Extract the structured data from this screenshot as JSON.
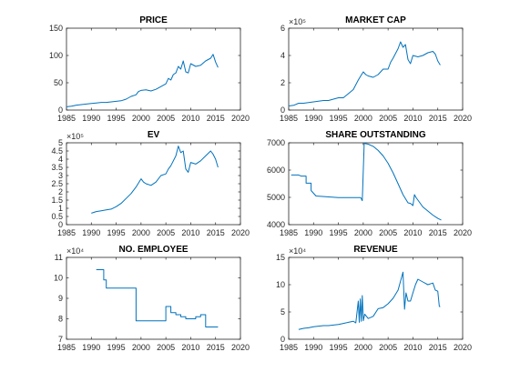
{
  "figure": {
    "series_color": "#0072BD",
    "axis_color": "#262626"
  },
  "chart_data": [
    {
      "type": "line",
      "title": "PRICE",
      "xlim": [
        1985,
        2020
      ],
      "ylim": [
        0,
        150
      ],
      "xticks": [
        1985,
        1990,
        1995,
        2000,
        2005,
        2010,
        2015,
        2020
      ],
      "xtick_labels": [
        "1985",
        "1990",
        "1995",
        "2000",
        "2005",
        "2010",
        "2015",
        "2020"
      ],
      "yticks": [
        0,
        50,
        100,
        150
      ],
      "ytick_labels": [
        "0",
        "50",
        "100",
        "150"
      ],
      "exponent_label": null,
      "grid": false,
      "x": [
        1985,
        1986,
        1987,
        1988,
        1989,
        1990,
        1991,
        1992,
        1993,
        1994,
        1995,
        1996,
        1997,
        1998,
        1999,
        1999.5,
        2000,
        2001,
        2002,
        2003,
        2004,
        2005,
        2005.5,
        2006,
        2006.5,
        2007,
        2007.5,
        2008,
        2008.5,
        2009,
        2009.5,
        2010,
        2011,
        2012,
        2013,
        2014,
        2014.5,
        2015,
        2015.5
      ],
      "y": [
        6,
        7,
        9,
        10,
        11,
        12,
        13,
        14,
        14,
        15,
        16,
        17,
        20,
        25,
        28,
        34,
        36,
        37,
        35,
        38,
        43,
        48,
        58,
        55,
        65,
        68,
        80,
        75,
        90,
        70,
        68,
        85,
        80,
        82,
        90,
        95,
        102,
        88,
        78
      ]
    },
    {
      "type": "line",
      "title": "MARKET CAP",
      "xlim": [
        1985,
        2020
      ],
      "ylim": [
        0,
        6
      ],
      "xticks": [
        1985,
        1990,
        1995,
        2000,
        2005,
        2010,
        2015,
        2020
      ],
      "xtick_labels": [
        "1985",
        "1990",
        "1995",
        "2000",
        "2005",
        "2010",
        "2015",
        "2020"
      ],
      "yticks": [
        0,
        2,
        4,
        6
      ],
      "ytick_labels": [
        "0",
        "2",
        "4",
        "6"
      ],
      "exponent_label": "×10⁵",
      "grid": false,
      "x": [
        1985,
        1986,
        1987,
        1988,
        1989,
        1990,
        1991,
        1992,
        1993,
        1994,
        1995,
        1996,
        1997,
        1998,
        1999,
        1999.5,
        2000,
        2000.5,
        2001,
        2002,
        2003,
        2004,
        2005,
        2005.5,
        2006,
        2007,
        2007.5,
        2008,
        2008.5,
        2009,
        2009.5,
        2010,
        2011,
        2012,
        2013,
        2014,
        2014.5,
        2015,
        2015.5
      ],
      "y": [
        0.3,
        0.35,
        0.5,
        0.5,
        0.55,
        0.6,
        0.65,
        0.7,
        0.7,
        0.8,
        0.9,
        0.9,
        1.2,
        1.5,
        2.2,
        2.5,
        2.8,
        2.6,
        2.5,
        2.4,
        2.6,
        3.0,
        3.0,
        3.5,
        3.8,
        4.5,
        5.0,
        4.6,
        4.8,
        3.7,
        3.4,
        4.0,
        3.9,
        4.0,
        4.2,
        4.3,
        4.1,
        3.6,
        3.3
      ]
    },
    {
      "type": "line",
      "title": "EV",
      "xlim": [
        1985,
        2020
      ],
      "ylim": [
        0,
        5
      ],
      "xticks": [
        1985,
        1990,
        1995,
        2000,
        2005,
        2010,
        2015,
        2020
      ],
      "xtick_labels": [
        "1985",
        "1990",
        "1995",
        "2000",
        "2005",
        "2010",
        "2015",
        "2020"
      ],
      "yticks": [
        0,
        0.5,
        1,
        1.5,
        2,
        2.5,
        3,
        3.5,
        4,
        4.5,
        5
      ],
      "ytick_labels": [
        "0",
        "0.5",
        "1",
        "1.5",
        "2",
        "2.5",
        "3",
        "3.5",
        "4",
        "4.5",
        "5"
      ],
      "exponent_label": "×10⁵",
      "grid": false,
      "x": [
        1990,
        1991,
        1992,
        1993,
        1994,
        1995,
        1996,
        1997,
        1998,
        1999,
        2000,
        2000.5,
        2001,
        2002,
        2003,
        2004,
        2005,
        2005.5,
        2006,
        2007,
        2007.5,
        2008,
        2008.5,
        2009,
        2009.5,
        2010,
        2011,
        2012,
        2013,
        2014,
        2014.5,
        2015,
        2015.5
      ],
      "y": [
        0.7,
        0.8,
        0.85,
        0.9,
        0.95,
        1.1,
        1.3,
        1.6,
        1.9,
        2.3,
        2.8,
        2.6,
        2.5,
        2.4,
        2.6,
        3.0,
        3.1,
        3.4,
        3.6,
        4.2,
        4.8,
        4.4,
        4.5,
        3.4,
        3.2,
        3.8,
        3.7,
        3.9,
        4.2,
        4.5,
        4.3,
        4.0,
        3.5
      ]
    },
    {
      "type": "line",
      "title": "SHARE OUTSTANDING",
      "xlim": [
        1985,
        2020
      ],
      "ylim": [
        4000,
        7000
      ],
      "xticks": [
        1985,
        1990,
        1995,
        2000,
        2005,
        2010,
        2015,
        2020
      ],
      "xtick_labels": [
        "1985",
        "1990",
        "1995",
        "2000",
        "2005",
        "2010",
        "2015",
        "2020"
      ],
      "yticks": [
        4000,
        5000,
        6000,
        7000
      ],
      "ytick_labels": [
        "4000",
        "5000",
        "6000",
        "7000"
      ],
      "exponent_label": null,
      "grid": false,
      "x": [
        1985.5,
        1987,
        1987.5,
        1988.5,
        1988.5,
        1989.5,
        1989.5,
        1990.5,
        1995,
        1999.5,
        1999.8,
        2000.2,
        2001,
        2002,
        2003,
        2004,
        2005,
        2006,
        2007,
        2008,
        2009,
        2009.5,
        2010,
        2010.3,
        2010.6,
        2011,
        2012,
        2013,
        2014,
        2015,
        2015.7
      ],
      "y": [
        5820,
        5820,
        5780,
        5780,
        5520,
        5520,
        5250,
        5050,
        4990,
        4990,
        4880,
        6980,
        6950,
        6870,
        6720,
        6520,
        6250,
        5900,
        5500,
        5100,
        4800,
        4780,
        4700,
        5100,
        5000,
        4900,
        4650,
        4500,
        4350,
        4230,
        4170
      ]
    },
    {
      "type": "line",
      "title": "NO. EMPLOYEE",
      "xlim": [
        1985,
        2020
      ],
      "ylim": [
        7,
        11
      ],
      "xticks": [
        1985,
        1990,
        1995,
        2000,
        2005,
        2010,
        2015,
        2020
      ],
      "xtick_labels": [
        "1985",
        "1990",
        "1995",
        "2000",
        "2005",
        "2010",
        "2015",
        "2020"
      ],
      "yticks": [
        7,
        8,
        9,
        10,
        11
      ],
      "ytick_labels": [
        "7",
        "8",
        "9",
        "10",
        "11"
      ],
      "exponent_label": "×10⁴",
      "grid": false,
      "x": [
        1991,
        1991,
        1992.5,
        1992.5,
        1993,
        1993,
        1999,
        1999,
        2005,
        2005,
        2006,
        2006,
        2007,
        2007,
        2008,
        2008,
        2009,
        2009,
        2011,
        2011,
        2012,
        2012,
        2013,
        2013,
        2015.5
      ],
      "y": [
        10.4,
        10.4,
        10.4,
        9.9,
        9.9,
        9.5,
        9.5,
        7.9,
        7.9,
        8.6,
        8.6,
        8.3,
        8.3,
        8.2,
        8.2,
        8.1,
        8.1,
        8.0,
        8.0,
        8.1,
        8.1,
        8.2,
        8.2,
        7.6,
        7.6
      ]
    },
    {
      "type": "line",
      "title": "REVENUE",
      "xlim": [
        1985,
        2020
      ],
      "ylim": [
        0,
        15
      ],
      "xticks": [
        1985,
        1990,
        1995,
        2000,
        2005,
        2010,
        2015,
        2020
      ],
      "xtick_labels": [
        "1985",
        "1990",
        "1995",
        "2000",
        "2005",
        "2010",
        "2015",
        "2020"
      ],
      "yticks": [
        0,
        5,
        10,
        15
      ],
      "ytick_labels": [
        "0",
        "5",
        "10",
        "15"
      ],
      "exponent_label": "×10⁴",
      "grid": false,
      "x": [
        1987,
        1988,
        1989,
        1990,
        1991,
        1992,
        1993,
        1994,
        1995,
        1996,
        1997,
        1998,
        1998.5,
        1999,
        1999.2,
        1999.4,
        1999.6,
        1999.8,
        2000,
        2000.3,
        2001,
        2002,
        2003,
        2004,
        2005,
        2006,
        2007,
        2008,
        2008.3,
        2008.6,
        2009,
        2009.5,
        2010,
        2010.5,
        2011,
        2012,
        2013,
        2014,
        2014.5,
        2015,
        2015.3,
        2015.5
      ],
      "y": [
        1.8,
        2.0,
        2.1,
        2.3,
        2.4,
        2.5,
        2.5,
        2.6,
        2.7,
        2.9,
        3.1,
        3.3,
        3.0,
        7.0,
        3.1,
        7.4,
        3.3,
        8.0,
        3.4,
        4.6,
        3.8,
        4.2,
        5.6,
        5.8,
        6.5,
        7.5,
        9.0,
        12.3,
        5.5,
        8.5,
        7.0,
        7.0,
        8.5,
        10.0,
        11.0,
        10.5,
        10.0,
        10.3,
        9.0,
        8.8,
        6.0,
        6.0
      ]
    }
  ]
}
